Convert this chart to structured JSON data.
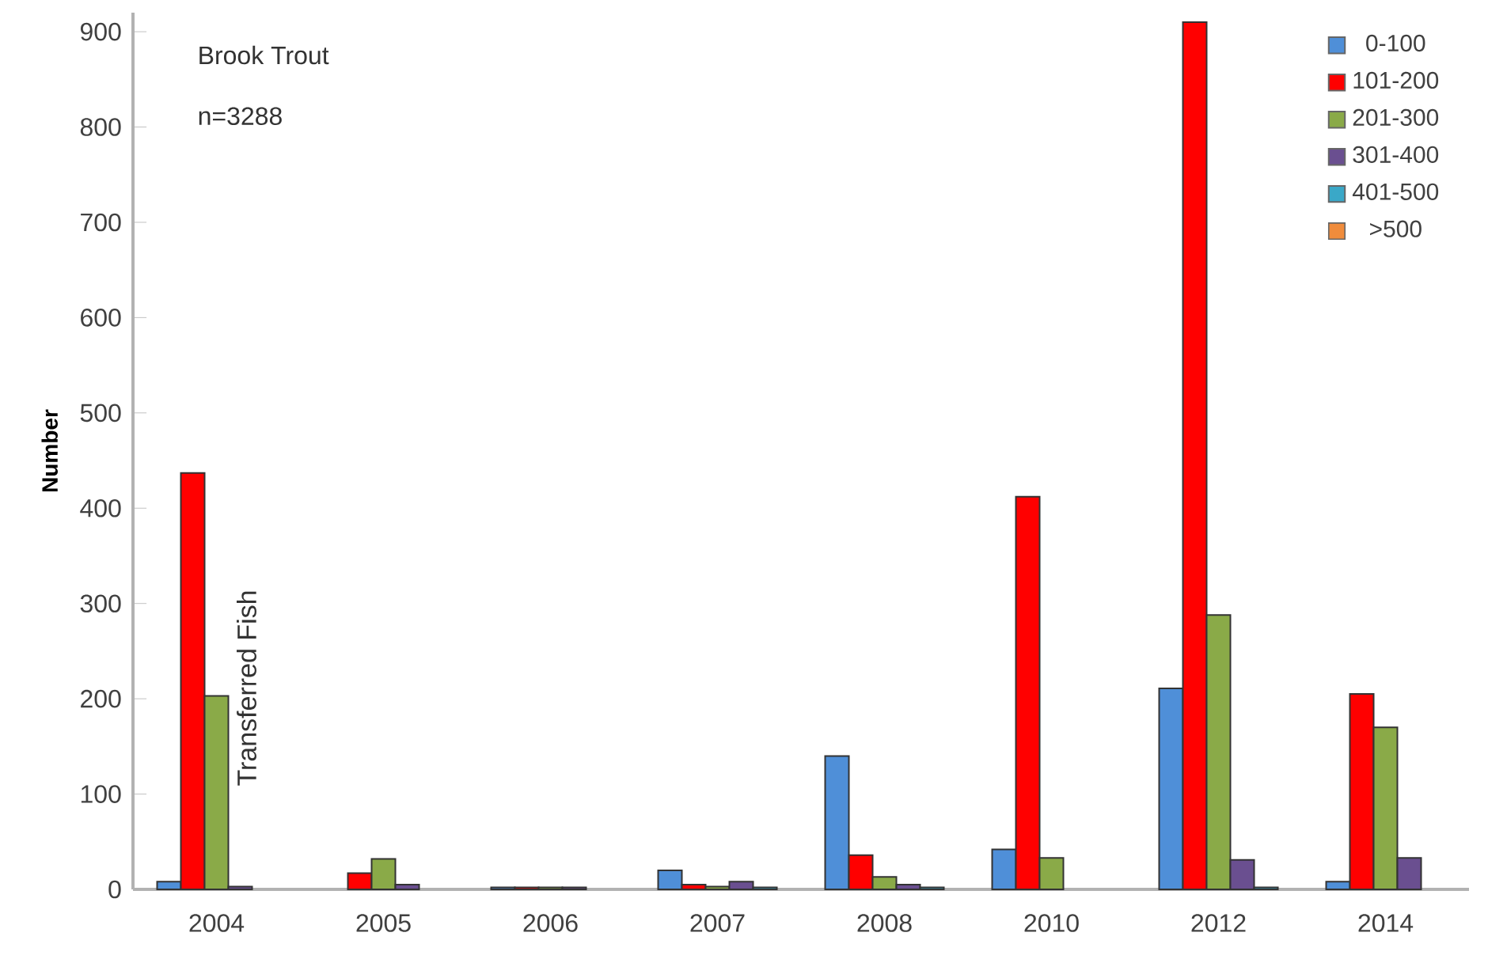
{
  "chart_data": {
    "type": "bar",
    "ylabel": "Number",
    "annotations": [
      "Brook Trout",
      "n=3288",
      "Transferred Fish"
    ],
    "categories": [
      "2004",
      "2005",
      "2006",
      "2007",
      "2008",
      "2010",
      "2012",
      "2014"
    ],
    "series": [
      {
        "name": "0-100",
        "color": "#4f8fd8",
        "values": [
          8,
          null,
          2,
          20,
          140,
          42,
          211,
          8
        ]
      },
      {
        "name": "101-200",
        "color": "#ff0000",
        "values": [
          437,
          17,
          2,
          5,
          36,
          412,
          910,
          205
        ]
      },
      {
        "name": "201-300",
        "color": "#8aaa48",
        "values": [
          203,
          32,
          2,
          3,
          13,
          33,
          288,
          170
        ]
      },
      {
        "name": "301-400",
        "color": "#6a4f90",
        "values": [
          3,
          5,
          2,
          8,
          5,
          null,
          31,
          33
        ]
      },
      {
        "name": "401-500",
        "color": "#3aa8c8",
        "values": [
          null,
          null,
          null,
          2,
          2,
          null,
          2,
          null
        ]
      },
      {
        "name": ">500",
        "color": "#f08c3c",
        "values": [
          null,
          null,
          null,
          null,
          null,
          null,
          null,
          null
        ]
      }
    ],
    "ylim": [
      0,
      920
    ],
    "yticks": [
      0,
      100,
      200,
      300,
      400,
      500,
      600,
      700,
      800,
      900
    ],
    "grid": false,
    "legend": "top right"
  }
}
